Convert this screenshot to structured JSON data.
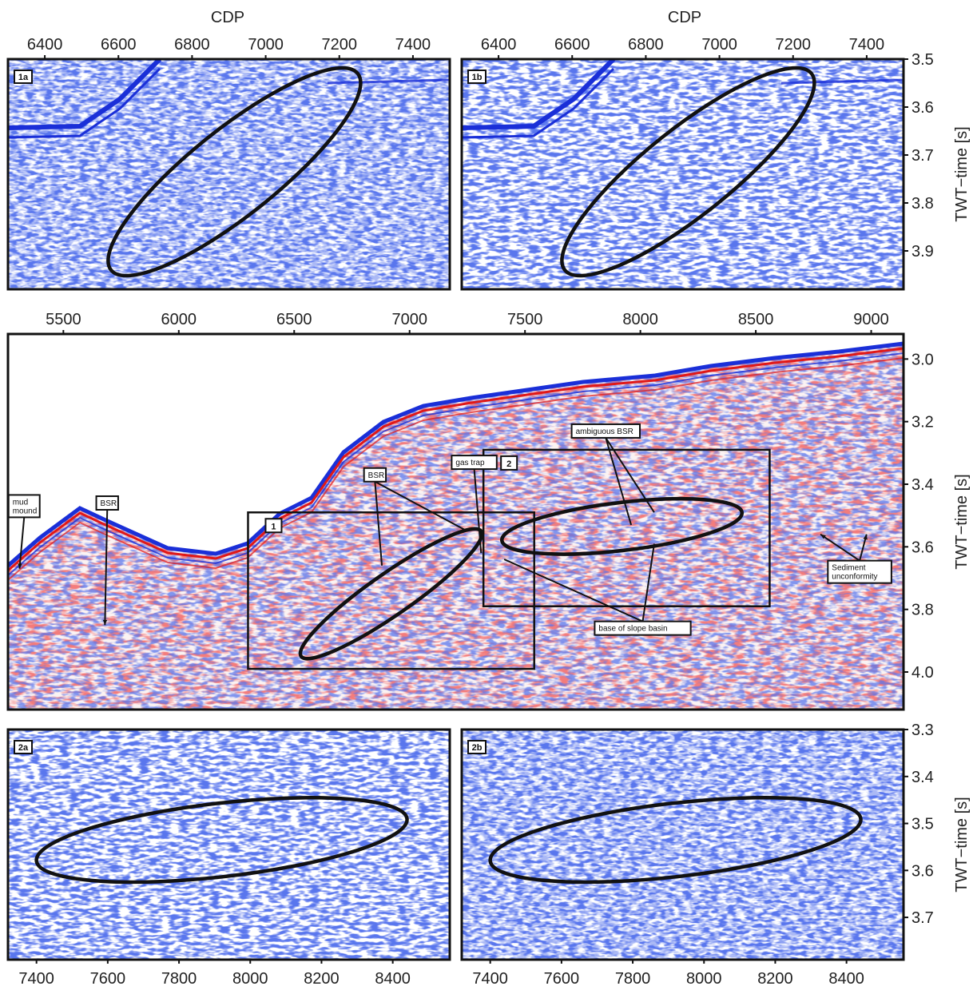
{
  "figure": {
    "axis_title_cdp": "CDP",
    "axis_title_time": "TWT−time [s]"
  },
  "chart_data": [
    {
      "panel": "1a",
      "type": "heatmap",
      "x_ticks": [
        6400,
        6600,
        6800,
        7000,
        7200,
        7400
      ],
      "xlim": [
        6300,
        7500
      ],
      "ylim": [
        3.98,
        3.5
      ],
      "xlabel": "CDP",
      "ylabel": "",
      "colors": [
        "#1a2fd8",
        "#ffffff"
      ],
      "ellipse": {
        "x1": 6580,
        "t1": 3.94,
        "x2": 7250,
        "t2": 3.53
      }
    },
    {
      "panel": "1b",
      "type": "heatmap",
      "x_ticks": [
        6400,
        6600,
        6800,
        7000,
        7200,
        7400
      ],
      "y_ticks": [
        3.5,
        3.6,
        3.7,
        3.8,
        3.9
      ],
      "xlim": [
        6300,
        7500
      ],
      "ylim": [
        3.98,
        3.5
      ],
      "xlabel": "CDP",
      "ylabel": "TWT−time [s]",
      "colors": [
        "#1a2fd8",
        "#ffffff"
      ],
      "ellipse": {
        "x1": 6580,
        "t1": 3.94,
        "x2": 7250,
        "t2": 3.53
      }
    },
    {
      "panel": "overview",
      "type": "heatmap",
      "x_ticks": [
        5500,
        6000,
        6500,
        7000,
        7500,
        8000,
        8500,
        9000
      ],
      "y_ticks": [
        3.0,
        3.2,
        3.4,
        3.6,
        3.8,
        4.0
      ],
      "xlim": [
        5260,
        9140
      ],
      "ylim": [
        4.12,
        2.92
      ],
      "xlabel": "",
      "ylabel": "TWT−time [s]",
      "colors": [
        "#1a2fd8",
        "#e01818",
        "#ffffff"
      ],
      "boxes": [
        {
          "label": "1",
          "x0": 6300,
          "x1": 7540,
          "t0": 3.49,
          "t1": 3.99
        },
        {
          "label": "2",
          "x0": 7320,
          "x1": 8560,
          "t0": 3.29,
          "t1": 3.79
        }
      ],
      "ellipses": [
        {
          "x1": 6530,
          "t1": 3.95,
          "x2": 7310,
          "t2": 3.55
        },
        {
          "x1": 7400,
          "t1": 3.58,
          "x2": 8440,
          "t2": 3.49
        }
      ],
      "annotations": [
        {
          "text": "mud\nmound",
          "x": 5330,
          "t": 3.47,
          "pointers": [
            [
              5310,
              3.67
            ]
          ]
        },
        {
          "text": "BSR",
          "x": 5690,
          "t": 3.46,
          "pointers": [
            [
              5680,
              3.85
            ]
          ]
        },
        {
          "text": "BSR",
          "x": 6850,
          "t": 3.37,
          "pointers": [
            [
              6880,
              3.66
            ],
            [
              7250,
              3.55
            ]
          ]
        },
        {
          "text": "gas trap",
          "x": 7280,
          "t": 3.33,
          "pointers": [
            [
              7310,
              3.62
            ]
          ]
        },
        {
          "text": "ambiguous BSR",
          "x": 7850,
          "t": 3.23,
          "pointers": [
            [
              7960,
              3.53
            ],
            [
              8060,
              3.49
            ]
          ]
        },
        {
          "text": "base of slope basin",
          "x": 8010,
          "t": 3.86,
          "pointers": [
            [
              7410,
              3.64
            ],
            [
              8060,
              3.59
            ]
          ]
        },
        {
          "text": "Sediment\nunconformity",
          "x": 8950,
          "t": 3.68,
          "pointers": [
            [
              8780,
              3.56
            ],
            [
              8980,
              3.56
            ]
          ]
        }
      ]
    },
    {
      "panel": "2a",
      "type": "heatmap",
      "x_ticks": [
        7400,
        7600,
        7800,
        8000,
        8200,
        8400
      ],
      "xlim": [
        7320,
        8560
      ],
      "ylim": [
        3.79,
        3.3
      ],
      "xlabel": "",
      "ylabel": "",
      "colors": [
        "#1a2fd8",
        "#ffffff"
      ],
      "ellipse": {
        "x1": 7400,
        "t1": 3.58,
        "x2": 8440,
        "t2": 3.49
      }
    },
    {
      "panel": "2b",
      "type": "heatmap",
      "x_ticks": [
        7400,
        7600,
        7800,
        8000,
        8200,
        8400
      ],
      "y_ticks": [
        3.3,
        3.4,
        3.5,
        3.6,
        3.7
      ],
      "xlim": [
        7320,
        8560
      ],
      "ylim": [
        3.79,
        3.3
      ],
      "xlabel": "",
      "ylabel": "TWT−time [s]",
      "colors": [
        "#1a2fd8",
        "#ffffff"
      ],
      "ellipse": {
        "x1": 7400,
        "t1": 3.58,
        "x2": 8440,
        "t2": 3.49
      }
    }
  ]
}
